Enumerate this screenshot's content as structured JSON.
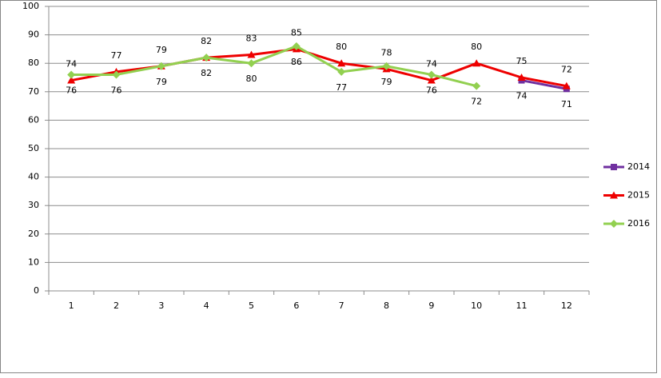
{
  "chart_data": {
    "type": "line",
    "categories": [
      "1",
      "2",
      "3",
      "4",
      "5",
      "6",
      "7",
      "8",
      "9",
      "10",
      "11",
      "12"
    ],
    "series": [
      {
        "name": "2014",
        "color": "#7030a0",
        "marker": "square",
        "label_side": "below",
        "values": [
          null,
          null,
          null,
          null,
          null,
          null,
          null,
          null,
          null,
          null,
          74,
          71
        ]
      },
      {
        "name": "2015",
        "color": "#ee0000",
        "marker": "triangle",
        "label_side": "above",
        "values": [
          74,
          77,
          79,
          82,
          83,
          85,
          80,
          78,
          74,
          80,
          75,
          72
        ]
      },
      {
        "name": "2016",
        "color": "#92d050",
        "marker": "diamond",
        "label_side": "below",
        "values": [
          76,
          76,
          79,
          82,
          80,
          86,
          77,
          79,
          76,
          72,
          null,
          null
        ]
      }
    ],
    "ylim": [
      0,
      100
    ],
    "yticks": [
      0,
      10,
      20,
      30,
      40,
      50,
      60,
      70,
      80,
      90,
      100
    ],
    "grid": true,
    "legend": "right"
  }
}
